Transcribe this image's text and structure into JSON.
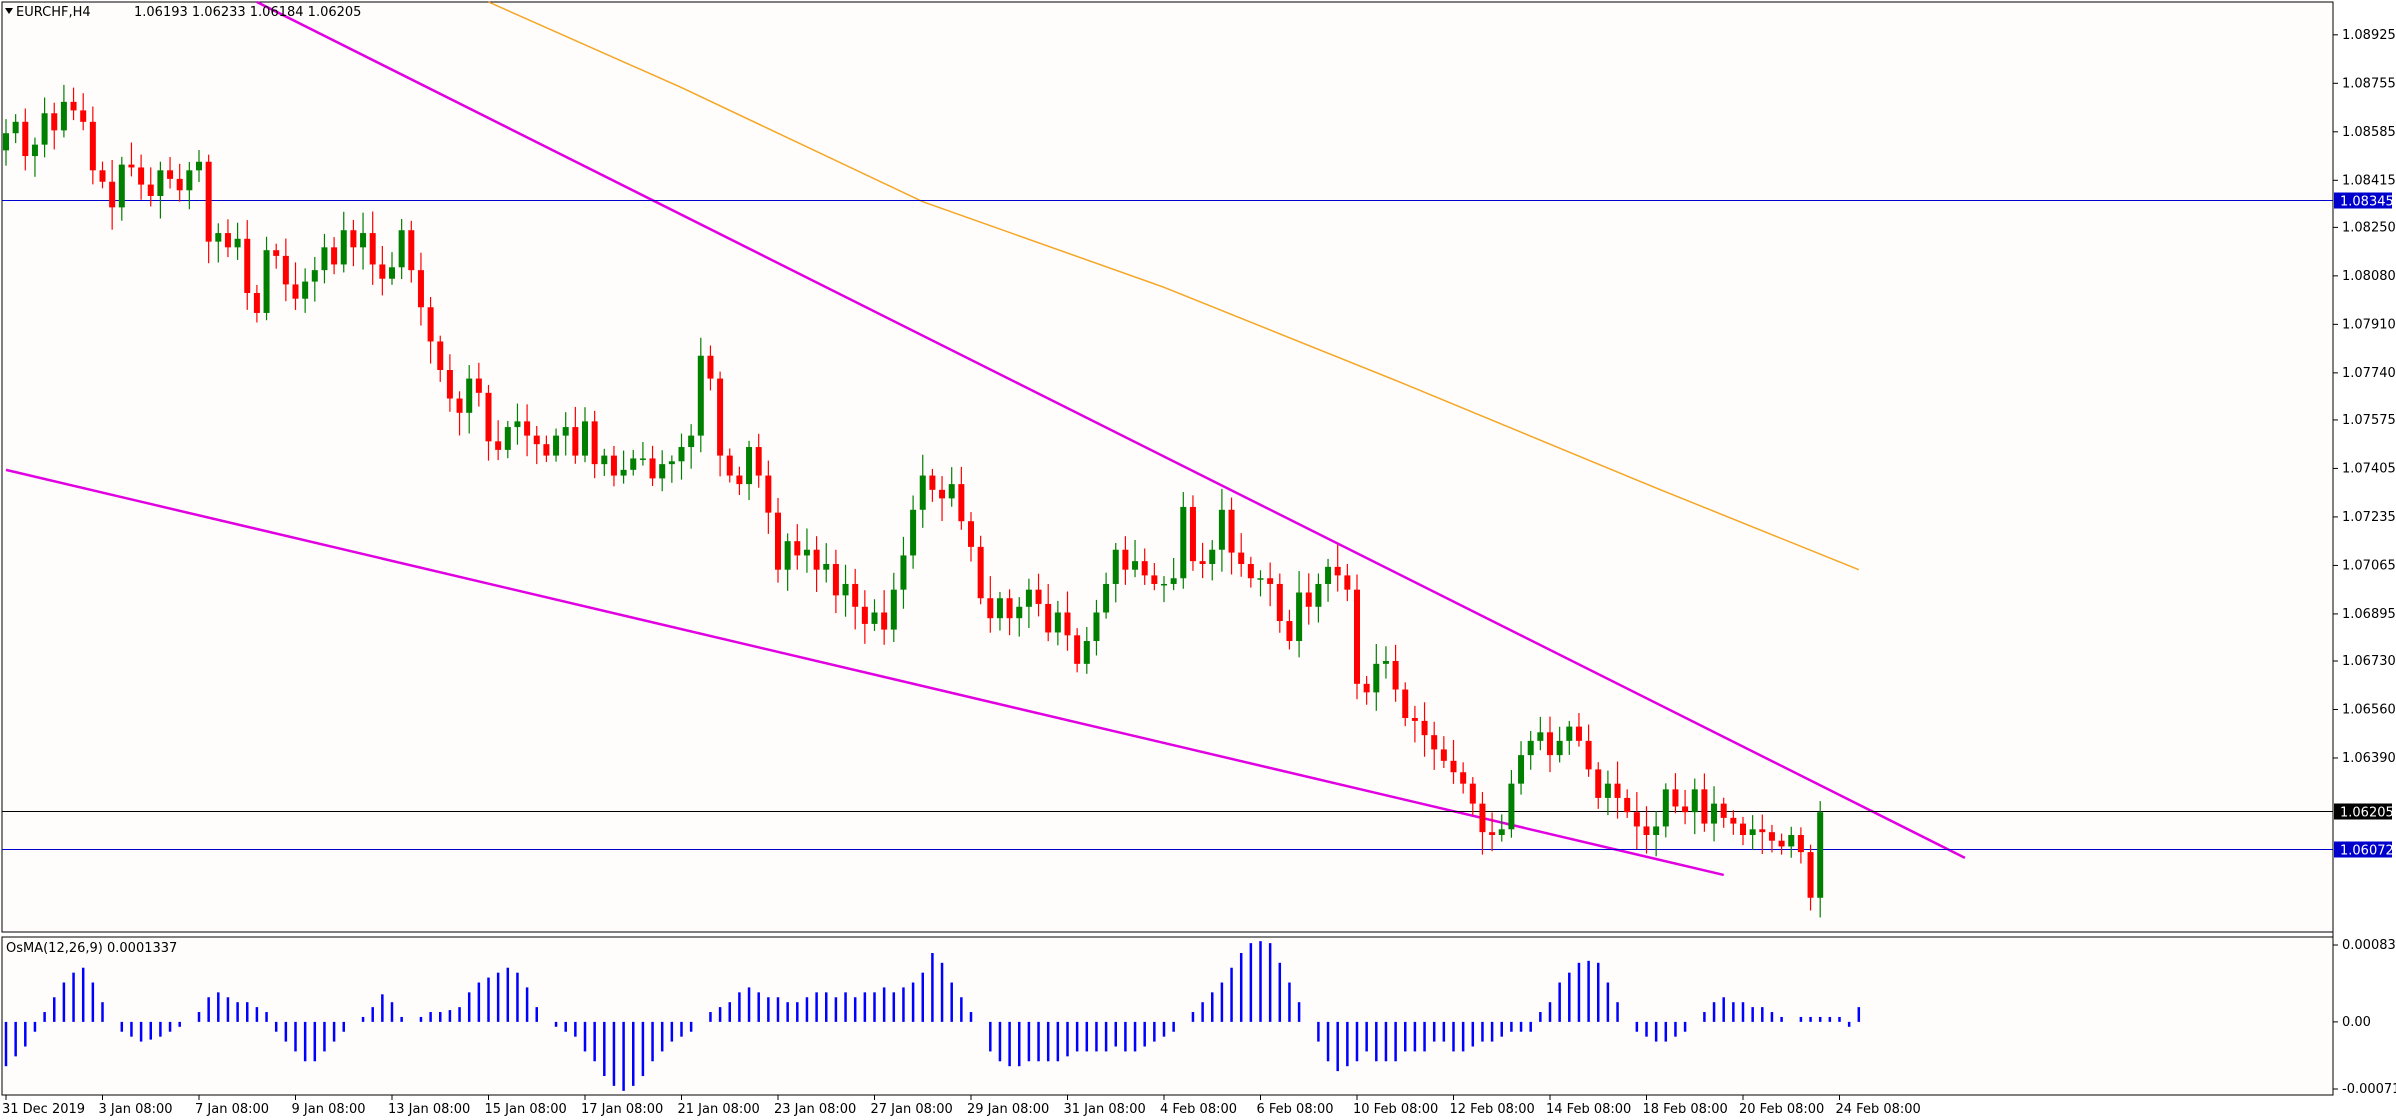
{
  "header": {
    "symbol": "EURCHF,H4",
    "ohlc": "1.06193 1.06233 1.06184 1.06205"
  },
  "indicator": {
    "label": "OsMA(12,26,9) 0.0001337",
    "ticks": [
      "0.0008315",
      "0.00",
      "-0.000712"
    ]
  },
  "colors": {
    "background": "#fffcfc",
    "bull": "#008000",
    "bear": "#ff0000",
    "trendline": "#e100e1",
    "ma": "#f5a623",
    "hline": "#0000cc",
    "osma": "#0000ff",
    "grid_text": "#000000"
  },
  "chart_data": {
    "type": "candlestick",
    "symbol": "EURCHF",
    "timeframe": "H4",
    "ylim": [
      1.0578,
      1.0904
    ],
    "y_ticks": [
      "1.08925",
      "1.08755",
      "1.08585",
      "1.08415",
      "1.08250",
      "1.08080",
      "1.07910",
      "1.07740",
      "1.07575",
      "1.07405",
      "1.07235",
      "1.07065",
      "1.06895",
      "1.06730",
      "1.06560",
      "1.06390"
    ],
    "x_tick_labels": [
      "31 Dec 2019",
      "3 Jan 08:00",
      "7 Jan 08:00",
      "9 Jan 08:00",
      "13 Jan 08:00",
      "15 Jan 08:00",
      "17 Jan 08:00",
      "21 Jan 08:00",
      "23 Jan 08:00",
      "27 Jan 08:00",
      "29 Jan 08:00",
      "31 Jan 08:00",
      "4 Feb 08:00",
      "6 Feb 08:00",
      "10 Feb 08:00",
      "12 Feb 08:00",
      "14 Feb 08:00",
      "18 Feb 08:00",
      "20 Feb 08:00",
      "24 Feb 08:00"
    ],
    "x_tick_index": [
      0,
      10,
      20,
      30,
      40,
      50,
      60,
      70,
      80,
      90,
      100,
      110,
      120,
      130,
      140,
      150,
      160,
      170,
      180,
      190
    ],
    "bar_count": 193,
    "horizontal_lines": [
      {
        "price": 1.08345,
        "label": "1.08345",
        "style": "blue"
      },
      {
        "price": 1.06205,
        "label": "1.06205",
        "style": "current"
      },
      {
        "price": 1.06072,
        "label": "1.06072",
        "style": "blue"
      }
    ],
    "trendlines": [
      {
        "i1": 26,
        "p1": 1.0904,
        "i2": 203,
        "p2": 1.0604
      },
      {
        "i1": 0,
        "p1": 1.074,
        "i2": 178,
        "p2": 1.0598
      }
    ],
    "moving_average": [
      [
        50,
        1.0904
      ],
      [
        70,
        1.0874
      ],
      [
        95,
        1.0834
      ],
      [
        120,
        1.0804
      ],
      [
        145,
        1.077
      ],
      [
        170,
        1.0735
      ],
      [
        192,
        1.0705
      ]
    ],
    "closes": [
      1.0858,
      1.0862,
      1.085,
      1.0854,
      1.0865,
      1.0859,
      1.0869,
      1.0866,
      1.0862,
      1.0845,
      1.0841,
      1.0832,
      1.0847,
      1.0846,
      1.084,
      1.0836,
      1.0845,
      1.0842,
      1.0838,
      1.0845,
      1.0848,
      1.082,
      1.0823,
      1.0818,
      1.0821,
      1.0802,
      1.0795,
      1.0817,
      1.0815,
      1.0805,
      1.08,
      1.0806,
      1.081,
      1.0818,
      1.0812,
      1.0824,
      1.0818,
      1.0823,
      1.0812,
      1.0807,
      1.0811,
      1.0824,
      1.081,
      1.0797,
      1.0785,
      1.0775,
      1.0765,
      1.076,
      1.0772,
      1.0767,
      1.075,
      1.0747,
      1.0755,
      1.0757,
      1.0752,
      1.0749,
      1.0745,
      1.0752,
      1.0755,
      1.0745,
      1.0757,
      1.0742,
      1.0745,
      1.0738,
      1.074,
      1.0744,
      1.0744,
      1.0737,
      1.0742,
      1.0743,
      1.0748,
      1.0752,
      1.078,
      1.0772,
      1.0745,
      1.0738,
      1.0735,
      1.0748,
      1.0738,
      1.0725,
      1.0705,
      1.0715,
      1.071,
      1.0712,
      1.0705,
      1.0707,
      1.0696,
      1.07,
      1.0692,
      1.0686,
      1.069,
      1.0684,
      1.0698,
      1.071,
      1.0726,
      1.0738,
      1.0733,
      1.073,
      1.0735,
      1.0722,
      1.0713,
      1.0695,
      1.0688,
      1.0695,
      1.0688,
      1.0692,
      1.0698,
      1.0693,
      1.0683,
      1.069,
      1.0682,
      1.0672,
      1.068,
      1.069,
      1.07,
      1.0712,
      1.0705,
      1.0708,
      1.0703,
      1.07,
      1.07,
      1.0702,
      1.0727,
      1.0708,
      1.0707,
      1.0712,
      1.0726,
      1.0711,
      1.0707,
      1.0702,
      1.0702,
      1.07,
      1.0687,
      1.068,
      1.0697,
      1.0692,
      1.07,
      1.0706,
      1.0703,
      1.0698,
      1.0665,
      1.0662,
      1.0672,
      1.0673,
      1.0663,
      1.0653,
      1.0652,
      1.0647,
      1.0642,
      1.0638,
      1.0634,
      1.063,
      1.0623,
      1.0613,
      1.0612,
      1.0614,
      1.063,
      1.064,
      1.0645,
      1.0648,
      1.064,
      1.0645,
      1.065,
      1.0645,
      1.0635,
      1.0625,
      1.063,
      1.0625,
      1.062,
      1.0615,
      1.0612,
      1.0615,
      1.0628,
      1.0622,
      1.062,
      1.0628,
      1.0616,
      1.0623,
      1.0618,
      1.0616,
      1.0612,
      1.0614,
      1.0613,
      1.061,
      1.0608,
      1.0612,
      1.0606,
      1.059,
      1.062
    ],
    "osma": {
      "ylim": [
        -0.000712,
        0.0008315
      ],
      "values": [
        -0.00045,
        -0.00035,
        -0.00025,
        -0.0001,
        0.0001,
        0.00025,
        0.0004,
        0.0005,
        0.00055,
        0.0004,
        0.0002,
        0.0,
        -0.0001,
        -0.00015,
        -0.0002,
        -0.00018,
        -0.00015,
        -0.0001,
        -5e-05,
        0.0,
        0.0001,
        0.00025,
        0.0003,
        0.00025,
        0.0002,
        0.0002,
        0.00015,
        0.0001,
        -0.0001,
        -0.0002,
        -0.0003,
        -0.0004,
        -0.0004,
        -0.0003,
        -0.0002,
        -0.0001,
        0.0,
        5e-05,
        0.00015,
        0.00028,
        0.0002,
        5e-05,
        0.0,
        5e-05,
        0.0001,
        0.0001,
        0.00012,
        0.00015,
        0.0003,
        0.0004,
        0.00045,
        0.0005,
        0.00055,
        0.0005,
        0.00035,
        0.00015,
        0.0,
        -5e-05,
        -0.0001,
        -0.00015,
        -0.0003,
        -0.0004,
        -0.00055,
        -0.00065,
        -0.0007,
        -0.00065,
        -0.00055,
        -0.0004,
        -0.0003,
        -0.0002,
        -0.00015,
        -0.0001,
        0.0,
        0.0001,
        0.00015,
        0.0002,
        0.0003,
        0.00035,
        0.0003,
        0.00025,
        0.00025,
        0.0002,
        0.0002,
        0.00025,
        0.0003,
        0.0003,
        0.00025,
        0.0003,
        0.00025,
        0.0003,
        0.0003,
        0.00035,
        0.0003,
        0.00035,
        0.0004,
        0.0005,
        0.0007,
        0.0006,
        0.0004,
        0.00025,
        0.0001,
        0.0,
        -0.0003,
        -0.0004,
        -0.00045,
        -0.00045,
        -0.0004,
        -0.0004,
        -0.0004,
        -0.0004,
        -0.00035,
        -0.0003,
        -0.0003,
        -0.0003,
        -0.0003,
        -0.00025,
        -0.0003,
        -0.0003,
        -0.00025,
        -0.0002,
        -0.00015,
        -0.0001,
        0.0,
        0.0001,
        0.0002,
        0.0003,
        0.0004,
        0.00055,
        0.0007,
        0.0008,
        0.00082,
        0.0008,
        0.0006,
        0.0004,
        0.0002,
        0.0,
        -0.0002,
        -0.0004,
        -0.0005,
        -0.00045,
        -0.0004,
        -0.0003,
        -0.0004,
        -0.0004,
        -0.0004,
        -0.0003,
        -0.0003,
        -0.0003,
        -0.0002,
        -0.0002,
        -0.0003,
        -0.0003,
        -0.00025,
        -0.0002,
        -0.0002,
        -0.00015,
        -0.0001,
        -0.0001,
        -0.0001,
        0.0001,
        0.0002,
        0.0004,
        0.0005,
        0.0006,
        0.00062,
        0.0006,
        0.0004,
        0.0002,
        0.0,
        -0.0001,
        -0.00015,
        -0.0002,
        -0.0002,
        -0.00015,
        -0.0001,
        0.0,
        0.0001,
        0.0002,
        0.00025,
        0.0002,
        0.0002,
        0.00015,
        0.00015,
        0.0001,
        5e-05,
        0.0,
        5e-05,
        5e-05,
        5e-05,
        5e-05,
        5e-05,
        -5e-05,
        0.00015
      ]
    }
  }
}
